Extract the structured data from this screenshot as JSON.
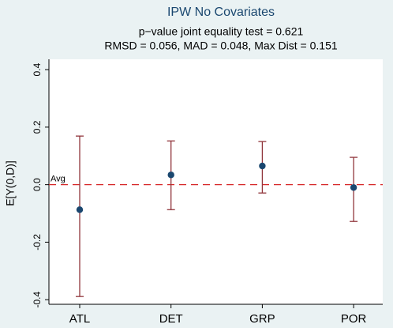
{
  "chart_data": {
    "type": "errorbar",
    "title": "IPW No Covariates",
    "subtitle": [
      "p−value joint equality test = 0.621",
      "RMSD = 0.056, MAD = 0.048, Max Dist = 0.151"
    ],
    "y_label": "E[Y(0,D)]",
    "categories": [
      "ATL",
      "DET",
      "GRP",
      "POR"
    ],
    "values": [
      -0.087,
      0.034,
      0.065,
      -0.01
    ],
    "lower": [
      -0.389,
      -0.087,
      -0.029,
      -0.128
    ],
    "upper": [
      0.169,
      0.152,
      0.15,
      0.095
    ],
    "point_color": "#1a476f",
    "bar_color": "#90353b",
    "ref_line": {
      "value": 0,
      "label": "Avg",
      "color": "#d62728"
    },
    "ylim": [
      -0.416,
      0.436
    ],
    "yticks": [
      -0.4,
      -0.2,
      {
        "value": 0,
        "label": "0.0"
      },
      0.2,
      0.4
    ]
  }
}
